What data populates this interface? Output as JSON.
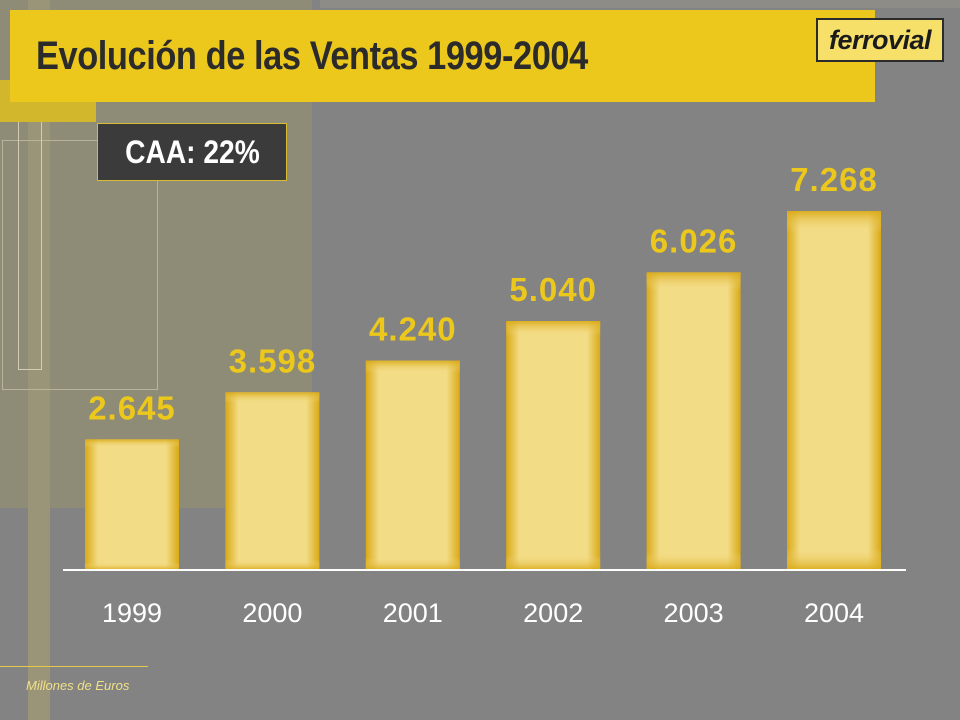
{
  "header": {
    "title": "Evolución de las Ventas 1999-2004",
    "logo_text": "ferrovial"
  },
  "badge": {
    "caa_label": "CAA: 22%"
  },
  "footnote": "Millones de Euros",
  "colors": {
    "accent": "#ecc81c",
    "background": "#838383",
    "bar_edge": "#deb01a",
    "bar_fill": "#f0dc88",
    "badge_bg": "#3b3b3b"
  },
  "chart_data": {
    "type": "bar",
    "categories": [
      "1999",
      "2000",
      "2001",
      "2002",
      "2003",
      "2004"
    ],
    "values": [
      2645,
      3598,
      4240,
      5040,
      6026,
      7268
    ],
    "value_labels": [
      "2.645",
      "3.598",
      "4.240",
      "5.040",
      "6.026",
      "7.268"
    ],
    "title": "Evolución de las Ventas 1999-2004",
    "xlabel": "",
    "ylabel": "",
    "ylim": [
      0,
      7268
    ],
    "grid": false,
    "legend": "none"
  }
}
